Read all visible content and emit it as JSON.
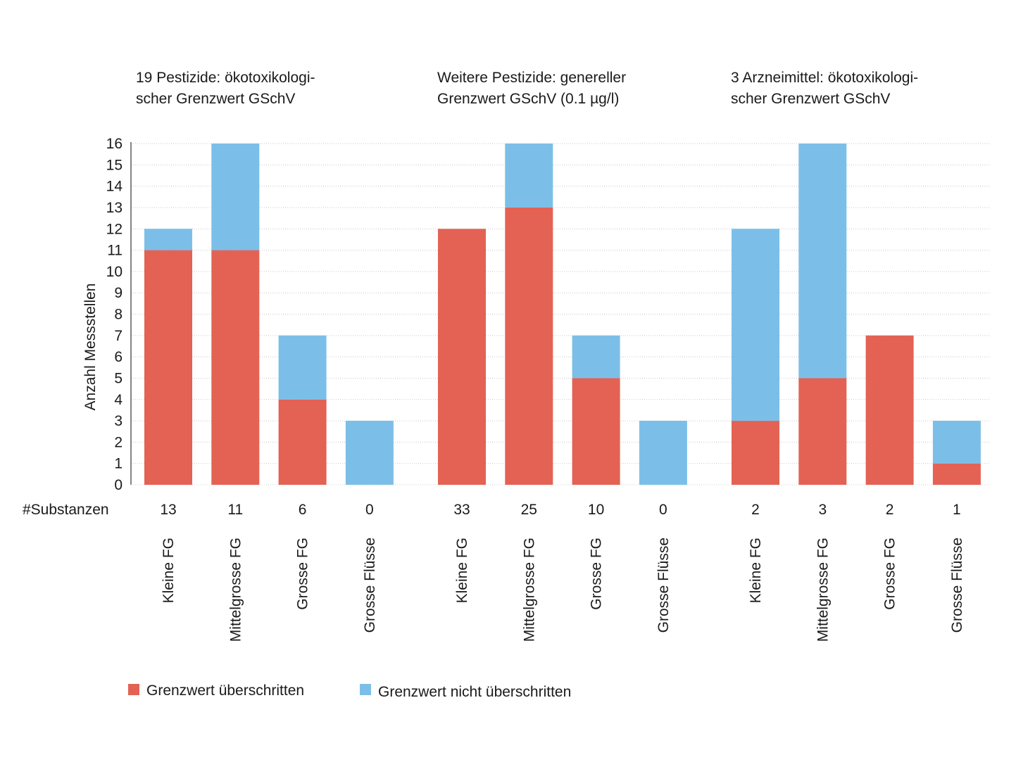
{
  "chart_data": {
    "type": "bar",
    "stacked": true,
    "ylabel": "Anzahl Messstellen",
    "ylim": [
      0,
      16
    ],
    "yticks": [
      0,
      1,
      2,
      3,
      4,
      5,
      6,
      7,
      8,
      9,
      10,
      11,
      12,
      13,
      14,
      15,
      16
    ],
    "substances_row_label": "#Substanzen",
    "colors": {
      "exceeded": "#e36254",
      "not_exceeded": "#7bbfe8"
    },
    "legend": [
      {
        "key": "exceeded",
        "label": "Grenzwert überschritten"
      },
      {
        "key": "not_exceeded",
        "label": "Grenzwert nicht überschritten"
      }
    ],
    "groups": [
      {
        "title_lines": [
          "19 Pestizide: ökotoxikologi-",
          "scher Grenzwert GSchV"
        ],
        "categories": [
          "Kleine FG",
          "Mittelgrosse FG",
          "Grosse FG",
          "Grosse Flüsse"
        ],
        "substances": [
          13,
          11,
          6,
          0
        ],
        "series": [
          {
            "name": "Grenzwert überschritten",
            "values": [
              11,
              11,
              4,
              0
            ]
          },
          {
            "name": "Grenzwert nicht überschritten",
            "values": [
              1,
              5,
              3,
              3
            ]
          }
        ]
      },
      {
        "title_lines": [
          "Weitere Pestizide: genereller",
          "Grenzwert GSchV (0.1 µg/l)"
        ],
        "categories": [
          "Kleine FG",
          "Mittelgrosse FG",
          "Grosse FG",
          "Grosse Flüsse"
        ],
        "substances": [
          33,
          25,
          10,
          0
        ],
        "series": [
          {
            "name": "Grenzwert überschritten",
            "values": [
              12,
              13,
              5,
              0
            ]
          },
          {
            "name": "Grenzwert nicht überschritten",
            "values": [
              0,
              3,
              2,
              3
            ]
          }
        ]
      },
      {
        "title_lines": [
          "3 Arzneimittel: ökotoxikologi-",
          "scher Grenzwert GSchV"
        ],
        "categories": [
          "Kleine FG",
          "Mittelgrosse FG",
          "Grosse FG",
          "Grosse Flüsse"
        ],
        "substances": [
          2,
          3,
          2,
          1
        ],
        "series": [
          {
            "name": "Grenzwert überschritten",
            "values": [
              3,
              5,
              7,
              1
            ]
          },
          {
            "name": "Grenzwert nicht überschritten",
            "values": [
              9,
              11,
              0,
              2
            ]
          }
        ]
      }
    ]
  }
}
